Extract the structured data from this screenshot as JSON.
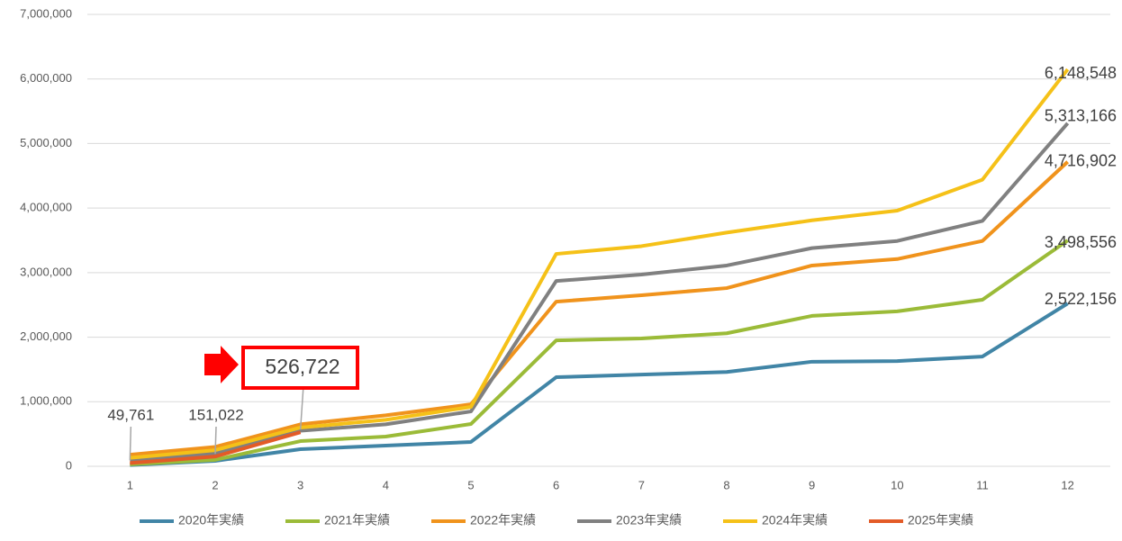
{
  "chart_data": {
    "type": "line",
    "categories": [
      "1",
      "2",
      "3",
      "4",
      "5",
      "6",
      "7",
      "8",
      "9",
      "10",
      "11",
      "12"
    ],
    "series": [
      {
        "name": "2020年実績",
        "color": "#4185a6",
        "values": [
          20000,
          84000,
          265000,
          320000,
          377000,
          1380000,
          1420000,
          1460000,
          1620000,
          1630000,
          1700000,
          2522156
        ],
        "value_labels": [
          null,
          null,
          null,
          null,
          null,
          null,
          null,
          null,
          null,
          null,
          null,
          "2,522,156"
        ]
      },
      {
        "name": "2021年実績",
        "color": "#9bbb38",
        "values": [
          30000,
          100000,
          390000,
          460000,
          655000,
          1950000,
          1980000,
          2060000,
          2330000,
          2400000,
          2580000,
          3498556
        ],
        "value_labels": [
          null,
          null,
          null,
          null,
          null,
          null,
          null,
          null,
          null,
          null,
          null,
          "3,498,556"
        ]
      },
      {
        "name": "2022年実績",
        "color": "#f0931c",
        "values": [
          180000,
          300000,
          650000,
          790000,
          960000,
          2550000,
          2650000,
          2760000,
          3110000,
          3210000,
          3490000,
          4716902
        ],
        "value_labels": [
          null,
          null,
          null,
          null,
          null,
          null,
          null,
          null,
          null,
          null,
          null,
          "4,716,902"
        ]
      },
      {
        "name": "2023年実績",
        "color": "#808080",
        "values": [
          100000,
          200000,
          550000,
          650000,
          850000,
          2870000,
          2970000,
          3110000,
          3380000,
          3490000,
          3800000,
          5313166
        ],
        "value_labels": [
          null,
          null,
          null,
          null,
          null,
          null,
          null,
          null,
          null,
          null,
          null,
          "5,313,166"
        ]
      },
      {
        "name": "2024年実績",
        "color": "#f5c118",
        "values": [
          130000,
          250000,
          600000,
          720000,
          920000,
          3290000,
          3410000,
          3620000,
          3810000,
          3960000,
          4440000,
          6148548
        ],
        "value_labels": [
          null,
          null,
          null,
          null,
          null,
          null,
          null,
          null,
          null,
          null,
          null,
          "6,148,548"
        ]
      },
      {
        "name": "2025年実績",
        "color": "#e35b27",
        "values": [
          49761,
          151022,
          526722,
          null,
          null,
          null,
          null,
          null,
          null,
          null,
          null,
          null
        ],
        "value_labels": [
          "49,761",
          "151,022",
          "526,722",
          null,
          null,
          null,
          null,
          null,
          null,
          null,
          null,
          null
        ]
      }
    ],
    "ylim": [
      0,
      7000000
    ],
    "yticks": [
      0,
      {
        "value": 1000000,
        "label": "1,000,000"
      },
      {
        "value": 2000000,
        "label": "2,000,000"
      },
      {
        "value": 3000000,
        "label": "3,000,000"
      },
      {
        "value": 4000000,
        "label": "4,000,000"
      },
      {
        "value": 5000000,
        "label": "5,000,000"
      },
      {
        "value": 6000000,
        "label": "6,000,000"
      },
      {
        "value": 7000000,
        "label": "7,000,000"
      }
    ],
    "grid": true,
    "legend": "bottom"
  }
}
